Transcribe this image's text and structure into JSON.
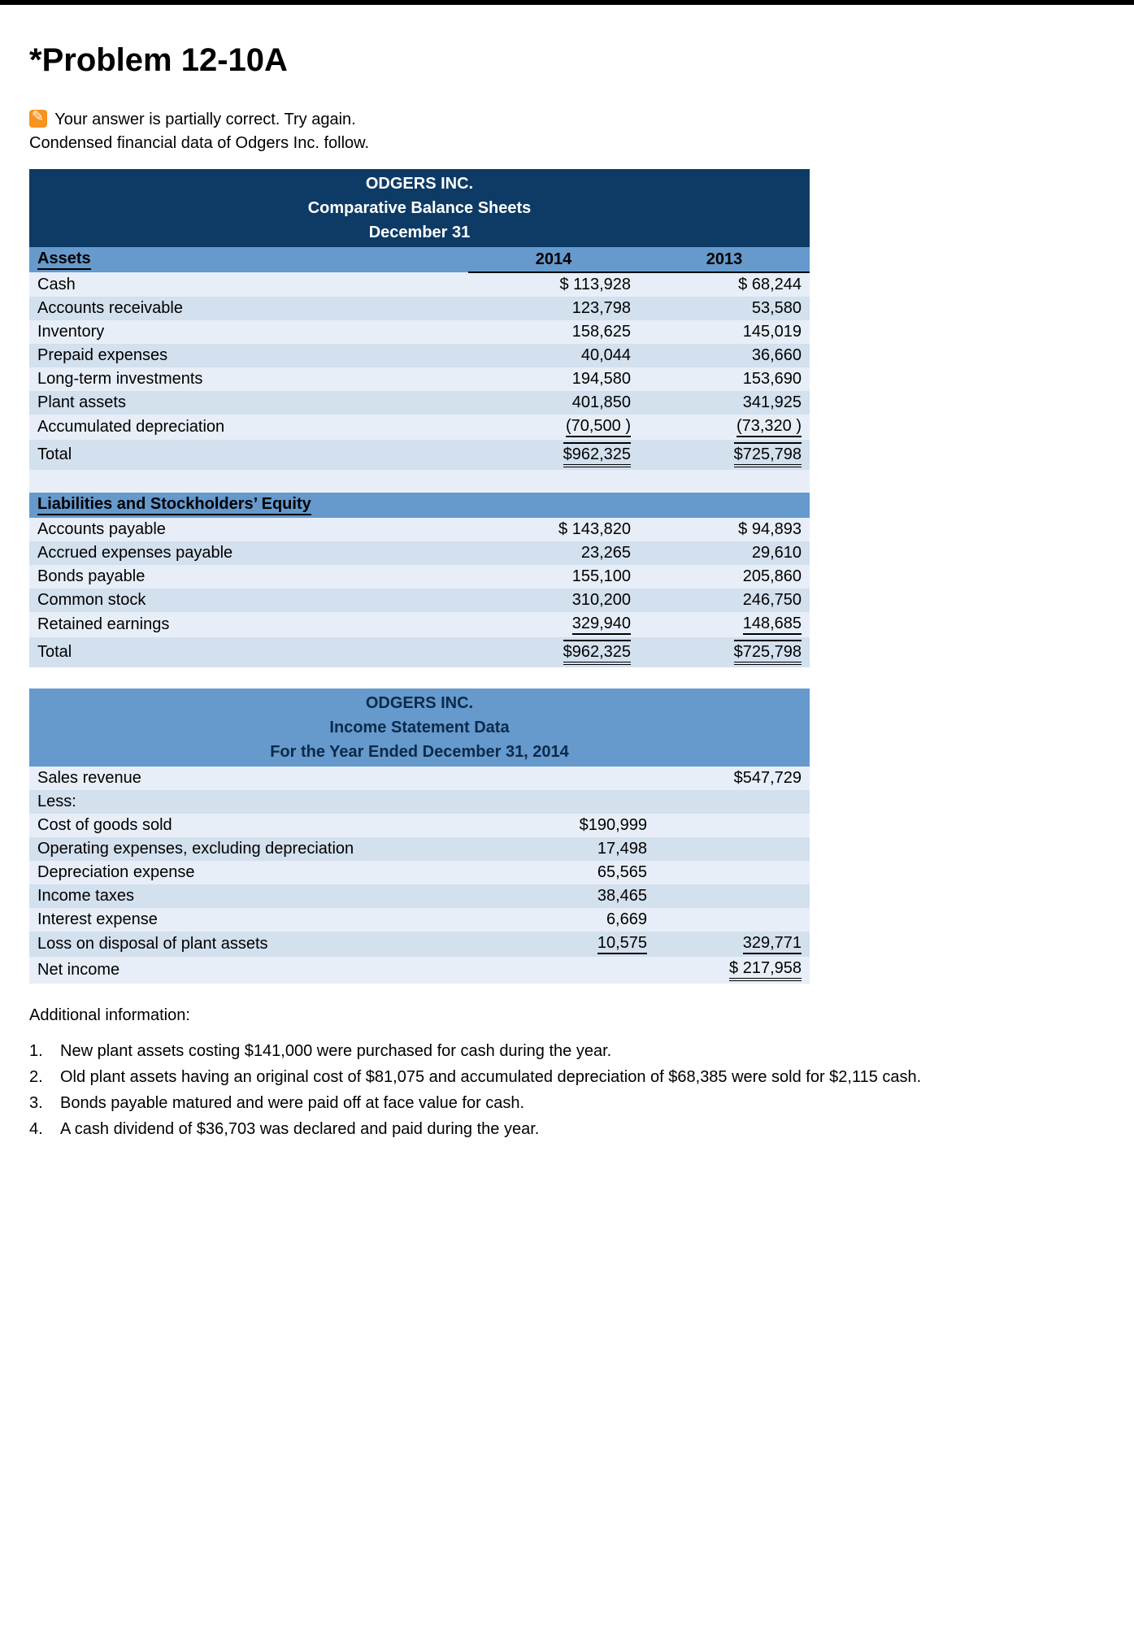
{
  "problem_title": "*Problem 12-10A",
  "status_text": "Your answer is partially correct.  Try again.",
  "intro_text": "Condensed financial data of Odgers Inc. follow.",
  "balance_sheet": {
    "header_lines": [
      "ODGERS INC.",
      "Comparative Balance Sheets",
      "December 31"
    ],
    "section1_label": "Assets",
    "year1": "2014",
    "year2": "2013",
    "assets": [
      {
        "label": "Cash",
        "y1": "$ 113,928",
        "y2": "$ 68,244"
      },
      {
        "label": "Accounts receivable",
        "y1": "123,798",
        "y2": "53,580"
      },
      {
        "label": "Inventory",
        "y1": "158,625",
        "y2": "145,019"
      },
      {
        "label": "Prepaid expenses",
        "y1": "40,044",
        "y2": "36,660"
      },
      {
        "label": "Long-term investments",
        "y1": "194,580",
        "y2": "153,690"
      },
      {
        "label": "Plant assets",
        "y1": "401,850",
        "y2": "341,925"
      },
      {
        "label": "Accumulated depreciation",
        "y1": "(70,500 )",
        "y2": "(73,320 )"
      }
    ],
    "assets_total": {
      "label": "Total",
      "y1": "$962,325",
      "y2": "$725,798"
    },
    "section2_label": "Liabilities and Stockholders’ Equity",
    "liab": [
      {
        "label": "Accounts payable",
        "y1": "$ 143,820",
        "y2": "$ 94,893"
      },
      {
        "label": "Accrued expenses payable",
        "y1": "23,265",
        "y2": "29,610"
      },
      {
        "label": "Bonds payable",
        "y1": "155,100",
        "y2": "205,860"
      },
      {
        "label": "Common stock",
        "y1": "310,200",
        "y2": "246,750"
      },
      {
        "label": "Retained earnings",
        "y1": "329,940",
        "y2": "148,685"
      }
    ],
    "liab_total": {
      "label": "Total",
      "y1": "$962,325",
      "y2": "$725,798"
    }
  },
  "income_stmt": {
    "header_lines": [
      "ODGERS INC.",
      "Income Statement Data",
      "For the Year Ended December 31, 2014"
    ],
    "sales": {
      "label": "Sales revenue",
      "value": "$547,729"
    },
    "less_label": "Less:",
    "items": [
      {
        "label": "Cost of goods sold",
        "v": "$190,999"
      },
      {
        "label": "Operating expenses, excluding depreciation",
        "v": "17,498"
      },
      {
        "label": "Depreciation expense",
        "v": "65,565"
      },
      {
        "label": "Income taxes",
        "v": "38,465"
      },
      {
        "label": "Interest expense",
        "v": "6,669"
      },
      {
        "label": "Loss on disposal of plant assets",
        "v": "10,575"
      }
    ],
    "less_total": "329,771",
    "net_income": {
      "label": "Net income",
      "value": "$ 217,958"
    }
  },
  "additional_label": "Additional information:",
  "additional_items": [
    "New plant assets costing $141,000 were purchased for cash during the year.",
    "Old plant assets having an original cost of $81,075 and accumulated depreciation of $68,385 were sold for $2,115 cash.",
    "Bonds payable matured and were paid off at face value for cash.",
    "A cash dividend of $36,703 was declared and paid during the year."
  ],
  "colors": {
    "header_dark": "#0d3b66",
    "header_blue": "#6699cc",
    "row_light": "#e7eef7",
    "row_dark": "#d3e0ee",
    "status_icon": "#f7931e"
  }
}
